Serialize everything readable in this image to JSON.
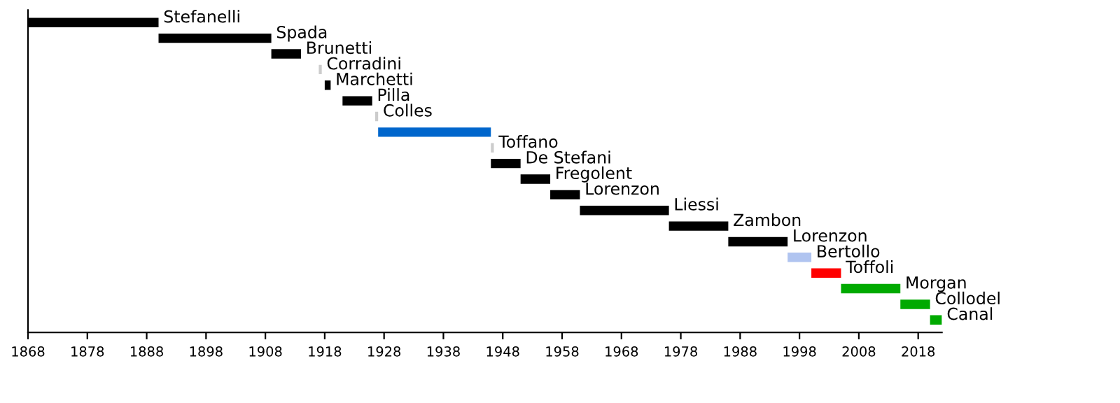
{
  "chart_data": {
    "type": "bar",
    "orientation": "horizontal",
    "categories": [
      "Stefanelli",
      "Spada",
      "Brunetti",
      "Corradini",
      "Marchetti",
      "Pilla",
      "Colles",
      null,
      "Toffano",
      "De Stefani",
      "Fregolent",
      "Lorenzon",
      "Liessi",
      "Zambon",
      "Lorenzon",
      "Bertollo",
      "Toffoli",
      "Morgan",
      "Collodel",
      "Canal"
    ],
    "base": [
      1868,
      1890,
      1909,
      1917,
      1918,
      1921,
      1926.5,
      1927,
      1946,
      1946,
      1951,
      1956,
      1961,
      1976,
      1986,
      1996,
      2000,
      2005,
      2015,
      2020
    ],
    "values": [
      22,
      19,
      5,
      0.5,
      1,
      5,
      0.5,
      19,
      0.5,
      5,
      5,
      5,
      15,
      10,
      10,
      4,
      5,
      10,
      5,
      2
    ],
    "colors": [
      "#000000",
      "#000000",
      "#000000",
      "#cccccc",
      "#000000",
      "#000000",
      "#cccccc",
      "#0066cc",
      "#cccccc",
      "#000000",
      "#000000",
      "#000000",
      "#000000",
      "#000000",
      "#000000",
      "#b0c4f0",
      "#ff0000",
      "#00aa00",
      "#00aa00",
      "#00aa00"
    ],
    "xlim": [
      1868,
      2022
    ],
    "xticks": [
      1868,
      1878,
      1888,
      1898,
      1908,
      1918,
      1928,
      1938,
      1948,
      1958,
      1968,
      1978,
      1988,
      1998,
      2008,
      2018
    ],
    "grid": false,
    "legend": false
  }
}
